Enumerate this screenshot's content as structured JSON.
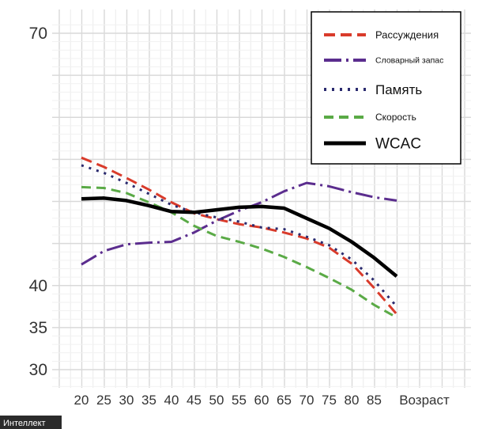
{
  "chart_data": {
    "type": "line",
    "title": "",
    "xlabel": "Возраст",
    "ylabel": "",
    "x": [
      20,
      25,
      30,
      35,
      40,
      45,
      50,
      55,
      60,
      65,
      70,
      75,
      80,
      85,
      90
    ],
    "xticks": [
      "20",
      "25",
      "30",
      "35",
      "40",
      "45",
      "50",
      "55",
      "60",
      "65",
      "70",
      "75",
      "80",
      "85"
    ],
    "yticks": [
      30,
      35,
      40,
      70
    ],
    "ylim": [
      28,
      72
    ],
    "grid": true,
    "legend_position": "top-right",
    "series": [
      {
        "name": "Рассуждения",
        "color": "#d93b2b",
        "dash": "14 7",
        "values": [
          55.2,
          54.1,
          52.8,
          51.4,
          49.9,
          48.6,
          47.9,
          47.3,
          46.9,
          46.3,
          45.6,
          44.5,
          42.6,
          39.7,
          36.6
        ]
      },
      {
        "name": "Словарный запас",
        "color": "#5b2d8e",
        "dash": "22 6 3 6",
        "values": [
          42.5,
          44.1,
          44.9,
          45.1,
          45.2,
          46.3,
          47.7,
          48.9,
          49.9,
          51.2,
          52.2,
          51.8,
          51.1,
          50.5,
          50.1
        ]
      },
      {
        "name": "Память",
        "color": "#2a2a6e",
        "dash": "3 7",
        "values": [
          54.3,
          53.4,
          52.2,
          50.9,
          49.6,
          48.7,
          48.1,
          47.6,
          46.9,
          46.7,
          45.8,
          44.8,
          43.1,
          40.6,
          37.5
        ]
      },
      {
        "name": "Скорость",
        "color": "#5aaa46",
        "dash": "12 7",
        "values": [
          51.7,
          51.6,
          51.0,
          49.9,
          48.7,
          47.1,
          45.9,
          45.2,
          44.4,
          43.4,
          42.2,
          40.9,
          39.5,
          37.7,
          36.2
        ]
      },
      {
        "name": "WCAC",
        "color": "#000000",
        "dash": "",
        "values": [
          50.3,
          50.4,
          50.1,
          49.5,
          48.8,
          48.7,
          49.0,
          49.3,
          49.4,
          49.2,
          48.0,
          46.8,
          45.2,
          43.3,
          41.1
        ]
      }
    ]
  },
  "watermark": "Интеллект"
}
